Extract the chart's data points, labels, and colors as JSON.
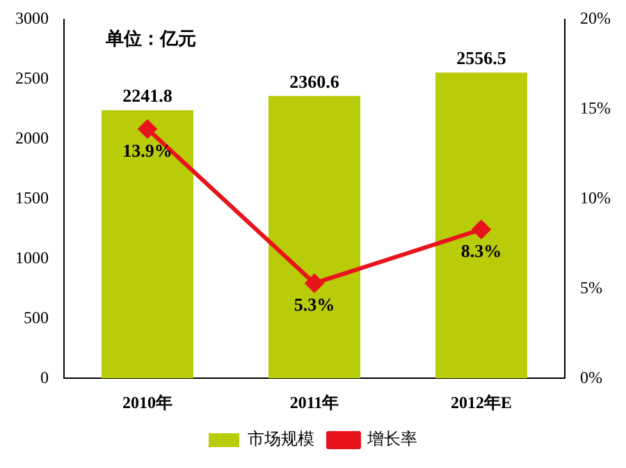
{
  "chart_data": {
    "type": "bar",
    "categories": [
      "2010年",
      "2011年",
      "2012年E"
    ],
    "series": [
      {
        "name": "市场规模",
        "color": "#b8cc0a",
        "values": [
          2241.8,
          2360.6,
          2556.5
        ],
        "value_labels": [
          "2241.8",
          "2360.6",
          "2556.5"
        ]
      },
      {
        "name": "增长率",
        "type": "line",
        "axis": "y2",
        "color": "#e8141c",
        "values": [
          13.9,
          5.3,
          8.3
        ],
        "value_labels": [
          "13.9%",
          "5.3%",
          "8.3%"
        ]
      }
    ],
    "ylim": [
      0,
      3000
    ],
    "yticks": [
      0,
      500,
      1000,
      1500,
      2000,
      2500,
      3000
    ],
    "y2lim": [
      0,
      20
    ],
    "y2ticks": [
      {
        "value": 0,
        "label": "0%"
      },
      {
        "value": 5,
        "label": "5%"
      },
      {
        "value": 10,
        "label": "10%"
      },
      {
        "value": 15,
        "label": "15%"
      },
      {
        "value": 20,
        "label": "20%"
      }
    ],
    "annotations": [
      "单位：亿元"
    ],
    "marker": "diamond",
    "grid": false,
    "legend": "bottom"
  }
}
